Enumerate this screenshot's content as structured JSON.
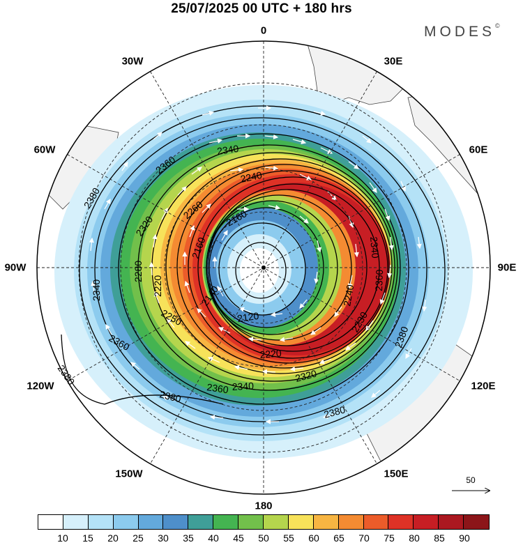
{
  "title": "25/07/2025  00 UTC  + 180 hrs",
  "brand": {
    "name": "MODES",
    "mark": "©"
  },
  "longitude_labels": [
    {
      "id": "0",
      "text": "0"
    },
    {
      "id": "30e",
      "text": "30E"
    },
    {
      "id": "60e",
      "text": "60E"
    },
    {
      "id": "90e",
      "text": "90E"
    },
    {
      "id": "120e",
      "text": "120E"
    },
    {
      "id": "150e",
      "text": "150E"
    },
    {
      "id": "180",
      "text": "180"
    },
    {
      "id": "150w",
      "text": "150W"
    },
    {
      "id": "120w",
      "text": "120W"
    },
    {
      "id": "90w",
      "text": "90W"
    },
    {
      "id": "60w",
      "text": "60W"
    },
    {
      "id": "30w",
      "text": "30W"
    }
  ],
  "contour_labels": [
    "2120",
    "2140",
    "2160",
    "2160",
    "2220",
    "2220",
    "2230",
    "2240",
    "2240",
    "2250",
    "2260",
    "2280",
    "2320",
    "2320",
    "2340",
    "2340",
    "2340",
    "2340",
    "2360",
    "2360",
    "2360",
    "2360",
    "2380",
    "2380",
    "2380",
    "2380",
    "2380"
  ],
  "vector_legend": {
    "label": "50"
  },
  "colorbar": {
    "colors": [
      "#ffffff",
      "#d6f0fb",
      "#b4e2f7",
      "#8ccbee",
      "#63a9dc",
      "#4e8fca",
      "#3f9f98",
      "#44b451",
      "#72c04b",
      "#b5d54d",
      "#f7e25a",
      "#f7b542",
      "#f48b32",
      "#ec5c2a",
      "#de3226",
      "#c71e24",
      "#ab1820",
      "#8c1519"
    ],
    "ticks": [
      "10",
      "15",
      "20",
      "25",
      "30",
      "35",
      "40",
      "45",
      "50",
      "55",
      "60",
      "65",
      "70",
      "75",
      "80",
      "85",
      "90"
    ]
  }
}
